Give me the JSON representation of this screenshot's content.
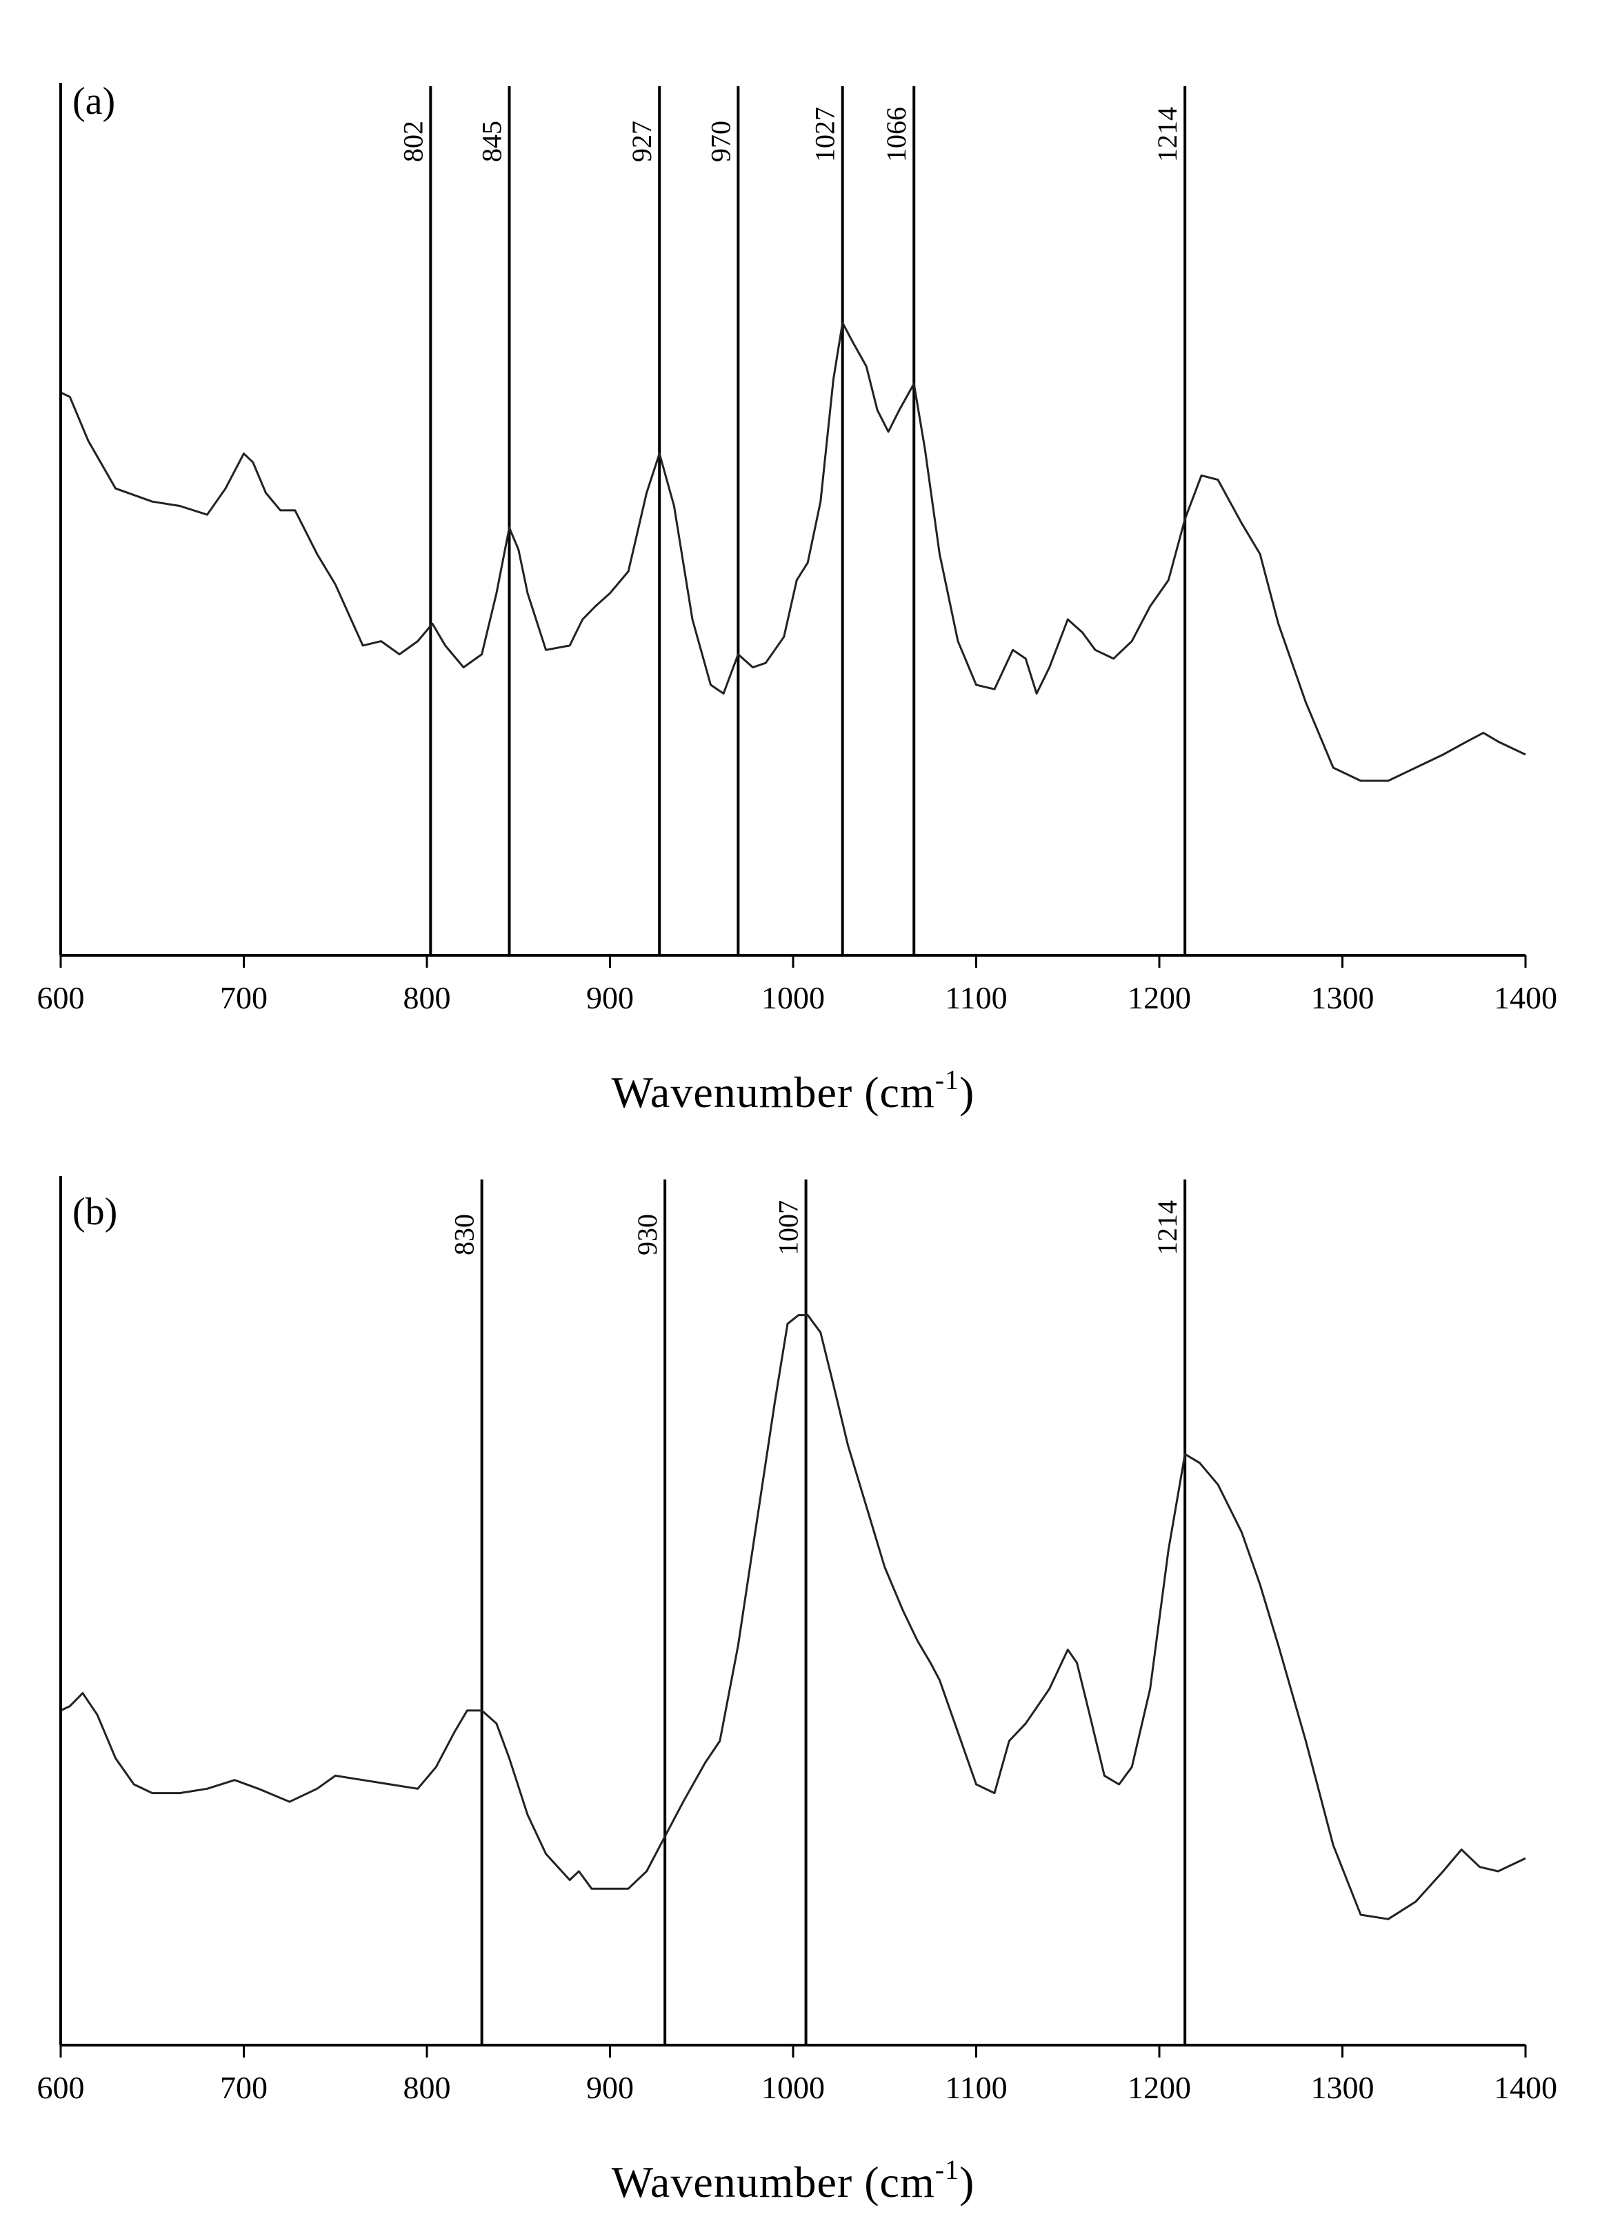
{
  "chart_data": [
    {
      "type": "line",
      "panel_label": "(a)",
      "xlabel": "Wavenumber (cm",
      "xlabel_sup": "-1",
      "xlabel_close": ")",
      "xlim": [
        600,
        1400
      ],
      "x_ticks": [
        "600",
        "700",
        "800",
        "900",
        "1000",
        "1100",
        "1200",
        "1300",
        "1400"
      ],
      "ylim": [
        0,
        1
      ],
      "grid": false,
      "peak_lines": [
        {
          "x": 802,
          "label": "802"
        },
        {
          "x": 845,
          "label": "845"
        },
        {
          "x": 927,
          "label": "927"
        },
        {
          "x": 970,
          "label": "970"
        },
        {
          "x": 1027,
          "label": "1027"
        },
        {
          "x": 1066,
          "label": "1066"
        },
        {
          "x": 1214,
          "label": "1214"
        }
      ],
      "series": [
        {
          "x": [
            600,
            605,
            615,
            630,
            650,
            665,
            680,
            690,
            700,
            705,
            712,
            720,
            728,
            740,
            750,
            765,
            775,
            785,
            795,
            803,
            810,
            820,
            830,
            838,
            845,
            850,
            855,
            865,
            878,
            885,
            892,
            900,
            910,
            920,
            927,
            935,
            945,
            955,
            962,
            970,
            978,
            985,
            995,
            1002,
            1008,
            1015,
            1022,
            1027,
            1032,
            1040,
            1046,
            1052,
            1058,
            1066,
            1072,
            1080,
            1090,
            1100,
            1110,
            1120,
            1127,
            1133,
            1140,
            1150,
            1158,
            1165,
            1175,
            1185,
            1195,
            1205,
            1214,
            1223,
            1232,
            1245,
            1255,
            1265,
            1280,
            1295,
            1310,
            1325,
            1340,
            1355,
            1368,
            1377,
            1385,
            1400
          ],
          "y": [
            0.645,
            0.64,
            0.59,
            0.535,
            0.52,
            0.515,
            0.505,
            0.535,
            0.575,
            0.565,
            0.53,
            0.51,
            0.51,
            0.46,
            0.425,
            0.355,
            0.36,
            0.345,
            0.36,
            0.38,
            0.355,
            0.33,
            0.345,
            0.415,
            0.49,
            0.465,
            0.415,
            0.35,
            0.355,
            0.385,
            0.4,
            0.415,
            0.44,
            0.53,
            0.575,
            0.515,
            0.385,
            0.31,
            0.3,
            0.345,
            0.33,
            0.335,
            0.365,
            0.43,
            0.45,
            0.52,
            0.66,
            0.725,
            0.705,
            0.675,
            0.625,
            0.6,
            0.625,
            0.655,
            0.58,
            0.46,
            0.36,
            0.31,
            0.305,
            0.35,
            0.34,
            0.3,
            0.33,
            0.385,
            0.37,
            0.35,
            0.34,
            0.36,
            0.4,
            0.43,
            0.5,
            0.55,
            0.545,
            0.495,
            0.46,
            0.38,
            0.29,
            0.215,
            0.2,
            0.2,
            0.215,
            0.23,
            0.245,
            0.255,
            0.245,
            0.23
          ]
        }
      ]
    },
    {
      "type": "line",
      "panel_label": "(b)",
      "xlabel": "Wavenumber (cm",
      "xlabel_sup": "-1",
      "xlabel_close": ")",
      "xlim": [
        600,
        1400
      ],
      "x_ticks": [
        "600",
        "700",
        "800",
        "900",
        "1000",
        "1100",
        "1200",
        "1300",
        "1400"
      ],
      "ylim": [
        0,
        1
      ],
      "grid": false,
      "peak_lines": [
        {
          "x": 830,
          "label": "830"
        },
        {
          "x": 930,
          "label": "930"
        },
        {
          "x": 1007,
          "label": "1007"
        },
        {
          "x": 1214,
          "label": "1214"
        }
      ],
      "series": [
        {
          "x": [
            600,
            605,
            612,
            620,
            630,
            640,
            650,
            665,
            680,
            695,
            708,
            725,
            740,
            750,
            765,
            780,
            795,
            805,
            815,
            822,
            830,
            838,
            845,
            855,
            865,
            878,
            883,
            890,
            900,
            910,
            915,
            920,
            930,
            940,
            952,
            960,
            970,
            980,
            990,
            997,
            1003,
            1008,
            1015,
            1022,
            1030,
            1040,
            1050,
            1060,
            1068,
            1075,
            1080,
            1090,
            1100,
            1110,
            1118,
            1127,
            1140,
            1150,
            1155,
            1162,
            1170,
            1178,
            1185,
            1195,
            1205,
            1214,
            1222,
            1232,
            1245,
            1255,
            1265,
            1280,
            1295,
            1310,
            1325,
            1340,
            1355,
            1365,
            1375,
            1385,
            1400
          ],
          "y": [
            0.385,
            0.39,
            0.405,
            0.38,
            0.33,
            0.3,
            0.29,
            0.29,
            0.295,
            0.305,
            0.295,
            0.28,
            0.295,
            0.31,
            0.305,
            0.3,
            0.295,
            0.32,
            0.36,
            0.385,
            0.385,
            0.37,
            0.33,
            0.265,
            0.22,
            0.19,
            0.2,
            0.18,
            0.18,
            0.18,
            0.19,
            0.2,
            0.24,
            0.28,
            0.325,
            0.35,
            0.46,
            0.6,
            0.74,
            0.83,
            0.84,
            0.84,
            0.82,
            0.76,
            0.69,
            0.62,
            0.55,
            0.5,
            0.465,
            0.44,
            0.42,
            0.36,
            0.3,
            0.29,
            0.35,
            0.37,
            0.41,
            0.455,
            0.44,
            0.38,
            0.31,
            0.3,
            0.32,
            0.41,
            0.57,
            0.68,
            0.67,
            0.645,
            0.59,
            0.53,
            0.46,
            0.35,
            0.23,
            0.15,
            0.145,
            0.165,
            0.2,
            0.225,
            0.205,
            0.2,
            0.215
          ]
        }
      ]
    }
  ]
}
